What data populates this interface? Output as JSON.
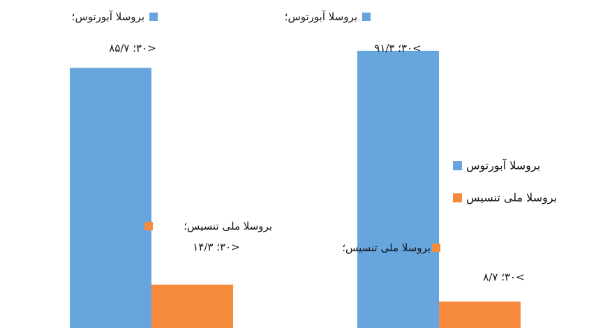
{
  "chart_data": {
    "type": "bar",
    "categories": [
      null,
      null
    ],
    "ylim": [
      0,
      100
    ],
    "series": [
      {
        "name": "بروسلا آبورتوس",
        "color": "#67a5df",
        "values": [
          85.7,
          91.3
        ],
        "label_name": "بروسلا آبورتوس؛",
        "value_labels": [
          "۸۵/۷ ؛۳۰>",
          "۹۱/۳ ؛۳۰<"
        ]
      },
      {
        "name": "بروسلا ملی تنسیس",
        "color": "#f58a3c",
        "values": [
          14.3,
          8.7
        ],
        "label_name": "بروسلا ملی تنسیس؛",
        "value_labels": [
          "۱۴/۳ ؛۳۰>",
          "۸/۷ ؛۳۰<"
        ]
      }
    ]
  }
}
